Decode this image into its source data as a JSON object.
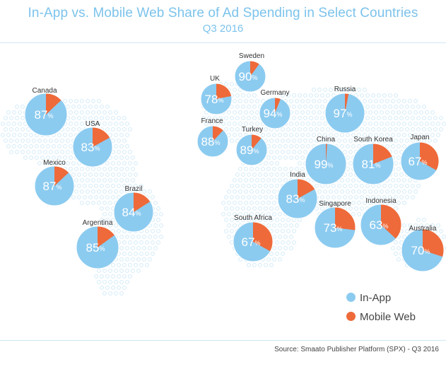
{
  "title": "In-App vs. Mobile Web Share of Ad Spending in Select Countries",
  "subtitle": "Q3 2016",
  "source": "Source: Smaato Publisher Platform (SPX) - Q3 2016",
  "legend": {
    "in_app": "In-App",
    "mobile_web": "Mobile Web",
    "in_app_color": "#8ccbf0",
    "mobile_web_color": "#ee6a3a"
  },
  "chart_data": {
    "type": "pie",
    "series": [
      {
        "name": "In-App",
        "color": "#8ccbf0"
      },
      {
        "name": "Mobile Web",
        "color": "#ee6a3a"
      }
    ],
    "countries": [
      {
        "name": "Canada",
        "in_app": 87,
        "mobile_web": 13
      },
      {
        "name": "USA",
        "in_app": 83,
        "mobile_web": 17
      },
      {
        "name": "Mexico",
        "in_app": 87,
        "mobile_web": 13
      },
      {
        "name": "Brazil",
        "in_app": 84,
        "mobile_web": 16
      },
      {
        "name": "Argentina",
        "in_app": 85,
        "mobile_web": 15
      },
      {
        "name": "UK",
        "in_app": 78,
        "mobile_web": 22
      },
      {
        "name": "Sweden",
        "in_app": 90,
        "mobile_web": 10
      },
      {
        "name": "Germany",
        "in_app": 94,
        "mobile_web": 6
      },
      {
        "name": "France",
        "in_app": 88,
        "mobile_web": 12
      },
      {
        "name": "Turkey",
        "in_app": 89,
        "mobile_web": 11
      },
      {
        "name": "Russia",
        "in_app": 97,
        "mobile_web": 3
      },
      {
        "name": "China",
        "in_app": 99,
        "mobile_web": 1
      },
      {
        "name": "South Korea",
        "in_app": 81,
        "mobile_web": 19
      },
      {
        "name": "Japan",
        "in_app": 67,
        "mobile_web": 33
      },
      {
        "name": "India",
        "in_app": 83,
        "mobile_web": 17
      },
      {
        "name": "Singapore",
        "in_app": 73,
        "mobile_web": 27
      },
      {
        "name": "Indonesia",
        "in_app": 63,
        "mobile_web": 37
      },
      {
        "name": "South Africa",
        "in_app": 67,
        "mobile_web": 33
      },
      {
        "name": "Australia",
        "in_app": 70,
        "mobile_web": 30
      }
    ]
  }
}
